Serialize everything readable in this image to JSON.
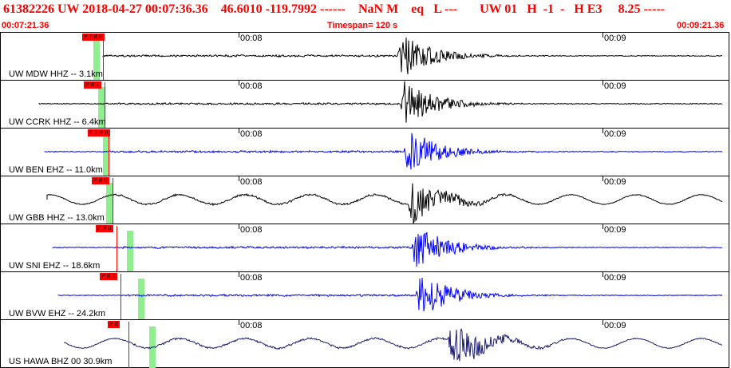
{
  "header": {
    "event_line": "61382226 UW 2018-04-27 00:07:36.36    46.6010 -119.7992 ------    NaN M    eq   L ---       UW 01   H  -1  -   H E3     8.25 -----",
    "start_time": "00:07:21.36",
    "timespan": "Timespan= 120 s",
    "end_time": "00:09:21.36"
  },
  "time_ticks": [
    "00:08",
    "00:09"
  ],
  "traces": [
    {
      "label": "UW MDW HHZ -- 3.1km",
      "color": "#000000",
      "pick": "P ? d 0",
      "signal": "quiet"
    },
    {
      "label": "UW CCRK HHZ -- 6.4km",
      "color": "#000000",
      "pick": "P d 2",
      "signal": "quiet"
    },
    {
      "label": "UW BEN EHZ -- 11.0km",
      "color": "#0000ff",
      "pick": "P ? d 0",
      "signal": "quiet"
    },
    {
      "label": "UW GBB HHZ -- 13.0km",
      "color": "#000000",
      "pick": "P d 0",
      "signal": "wavy"
    },
    {
      "label": "UW SNI EHZ -- 18.6km",
      "color": "#0000ff",
      "pick": "P d 0",
      "signal": "quiet"
    },
    {
      "label": "UW BVW EHZ -- 24.2km",
      "color": "#0000ff",
      "pick": "P d 3",
      "signal": "quiet"
    },
    {
      "label": "US HAWA BHZ 00 30.9km",
      "color": "#1a1a6e",
      "pick": "P d",
      "signal": "wavy"
    }
  ]
}
